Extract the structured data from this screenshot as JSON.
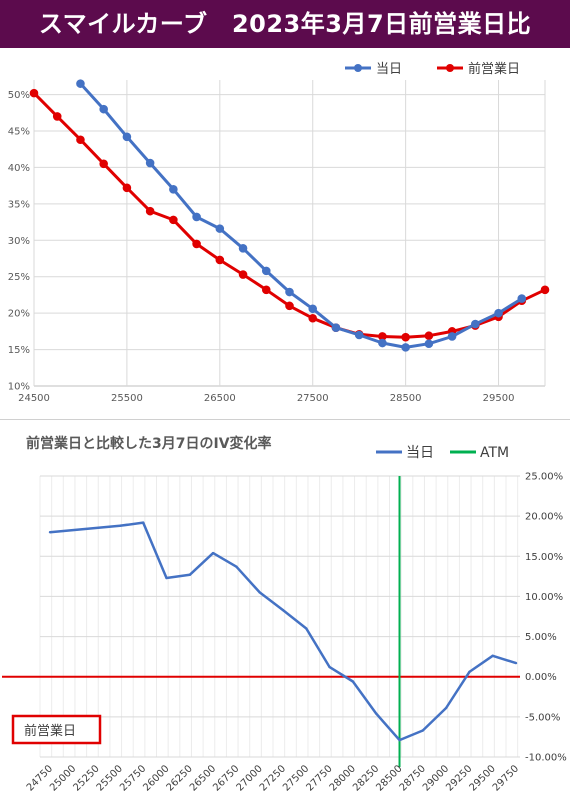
{
  "header": {
    "title": "スマイルカーブ　2023年3月7日前営業日比"
  },
  "colors": {
    "header_bg": "#5c0b4d",
    "current": "#4472c4",
    "previous": "#e00000",
    "atm": "#00b050",
    "zero_line": "#e00000"
  },
  "chart_data": [
    {
      "type": "line",
      "title": "",
      "xlabel": "",
      "ylabel": "",
      "xlim": [
        24500,
        30000
      ],
      "ylim": [
        10,
        52
      ],
      "x_ticks": [
        24500,
        25500,
        26500,
        27500,
        28500,
        29500
      ],
      "y_ticks": [
        10,
        15,
        20,
        25,
        30,
        35,
        40,
        45,
        50
      ],
      "y_tick_labels": [
        "10%",
        "15%",
        "20%",
        "25%",
        "30%",
        "35%",
        "40%",
        "45%",
        "50%"
      ],
      "grid": true,
      "legend_position": "top-right",
      "series": [
        {
          "name": "当日",
          "x": [
            24750,
            25000,
            25250,
            25500,
            25750,
            26000,
            26250,
            26500,
            26750,
            27000,
            27250,
            27500,
            27750,
            28000,
            28250,
            28500,
            28750,
            29000,
            29250,
            29500,
            29750
          ],
          "values": [
            null,
            51.5,
            48.0,
            44.2,
            40.6,
            37.0,
            33.2,
            31.6,
            28.9,
            25.8,
            22.9,
            20.6,
            18.0,
            17.0,
            15.9,
            15.3,
            15.8,
            16.8,
            18.5,
            20.0,
            22.0
          ]
        },
        {
          "name": "前営業日",
          "x": [
            24500,
            24750,
            25000,
            25250,
            25500,
            25750,
            26000,
            26250,
            26500,
            26750,
            27000,
            27250,
            27500,
            27750,
            28000,
            28250,
            28500,
            28750,
            29000,
            29250,
            29500,
            29750,
            30000
          ],
          "values": [
            50.2,
            47.0,
            43.8,
            40.5,
            37.2,
            34.0,
            32.8,
            29.5,
            27.3,
            25.3,
            23.2,
            21.0,
            19.3,
            18.0,
            17.1,
            16.8,
            16.7,
            16.9,
            17.5,
            18.3,
            19.5,
            21.7,
            23.2
          ]
        }
      ]
    },
    {
      "type": "line",
      "title": "前営業日と比較した3月7日のIV変化率",
      "xlabel": "",
      "ylabel": "",
      "categories": [
        "24750",
        "25000",
        "25250",
        "25500",
        "25750",
        "26000",
        "26250",
        "26500",
        "26750",
        "27000",
        "27250",
        "27500",
        "27750",
        "28000",
        "28250",
        "28500",
        "28750",
        "29000",
        "29250",
        "29500",
        "29750"
      ],
      "ylim": [
        -10,
        25
      ],
      "y_ticks": [
        -10,
        -5,
        0,
        5,
        10,
        15,
        20,
        25
      ],
      "y_tick_labels": [
        "-10.00%",
        "-5.00%",
        "0.00%",
        "5.00%",
        "10.00%",
        "15.00%",
        "20.00%",
        "25.00%"
      ],
      "y_axis_side": "right",
      "grid": true,
      "legend_position": "top-right",
      "series": [
        {
          "name": "当日",
          "x": [
            24750,
            25000,
            25250,
            25500,
            25750,
            26000,
            26250,
            26500,
            26750,
            27000,
            27250,
            27500,
            27750,
            28000,
            28250,
            28500,
            28750,
            29000,
            29250,
            29500,
            29750
          ],
          "values": [
            18.0,
            null,
            null,
            18.8,
            19.2,
            12.3,
            12.7,
            15.4,
            13.7,
            10.5,
            8.3,
            6.0,
            1.2,
            -0.6,
            -4.6,
            -7.9,
            -6.7,
            -3.9,
            0.6,
            2.6,
            1.7
          ]
        }
      ],
      "atm": {
        "name": "ATM",
        "x": 28500
      },
      "zero_line_label": "前営業日"
    }
  ]
}
